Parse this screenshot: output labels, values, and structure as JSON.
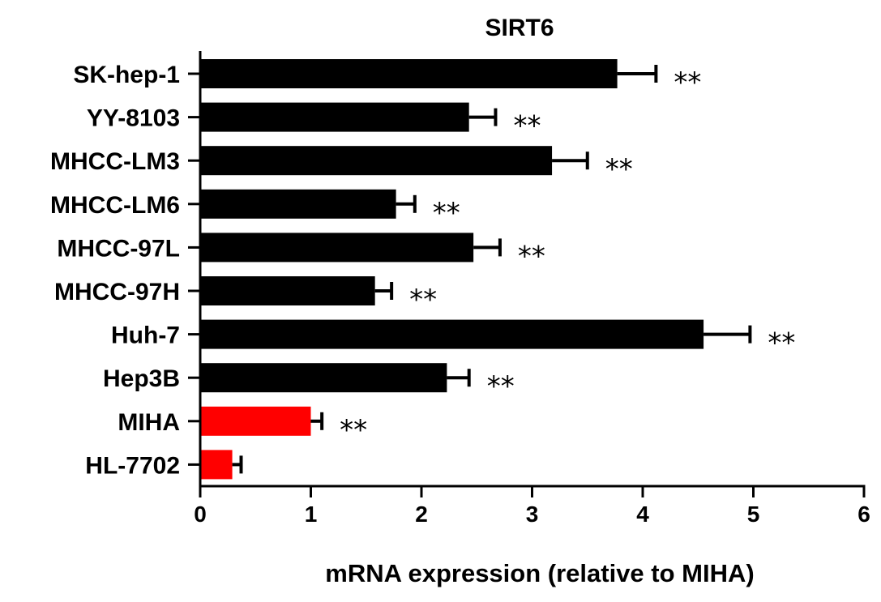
{
  "chart_data": {
    "type": "bar",
    "orientation": "horizontal",
    "title": "SIRT6",
    "xlabel": "mRNA expression (relative to MIHA)",
    "ylabel": "",
    "xlim": [
      0,
      6
    ],
    "xticks": [
      "0",
      "1",
      "2",
      "3",
      "4",
      "5",
      "6"
    ],
    "grid": false,
    "categories": [
      "SK-hep-1",
      "YY-8103",
      "MHCC-LM3",
      "MHCC-LM6",
      "MHCC-97L",
      "MHCC-97H",
      "Huh-7",
      "Hep3B",
      "MIHA",
      "HL-7702"
    ],
    "values": [
      3.77,
      2.43,
      3.18,
      1.77,
      2.47,
      1.58,
      4.55,
      2.23,
      1.0,
      0.29
    ],
    "errors": [
      0.35,
      0.24,
      0.32,
      0.17,
      0.24,
      0.15,
      0.42,
      0.2,
      0.1,
      0.08
    ],
    "significance": [
      "**",
      "**",
      "**",
      "**",
      "**",
      "**",
      "**",
      "**",
      "**",
      ""
    ],
    "colors": [
      "#000000",
      "#000000",
      "#000000",
      "#000000",
      "#000000",
      "#000000",
      "#000000",
      "#000000",
      "#ff0000",
      "#ff0000"
    ]
  }
}
